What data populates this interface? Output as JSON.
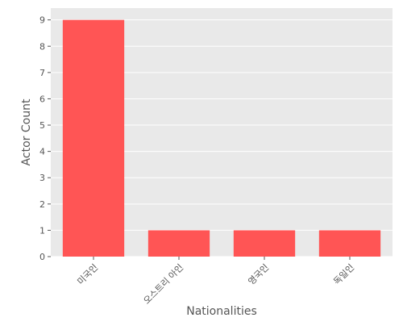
{
  "chart_data": {
    "type": "bar",
    "title": "",
    "xlabel": "Nationalities",
    "ylabel": "Actor Count",
    "categories": [
      "미국인",
      "오스트리 아인",
      "영국인",
      "독일인"
    ],
    "values": [
      9,
      1,
      1,
      1
    ],
    "ylim": [
      0,
      9.45
    ],
    "yticks": [
      0,
      1,
      2,
      3,
      4,
      5,
      6,
      7,
      8,
      9
    ],
    "grid": true,
    "legend": "none",
    "colors": {
      "bar": "#ff5555",
      "plot_background": "#e9e9e9",
      "grid": "#ffffff",
      "text": "#555555"
    }
  }
}
